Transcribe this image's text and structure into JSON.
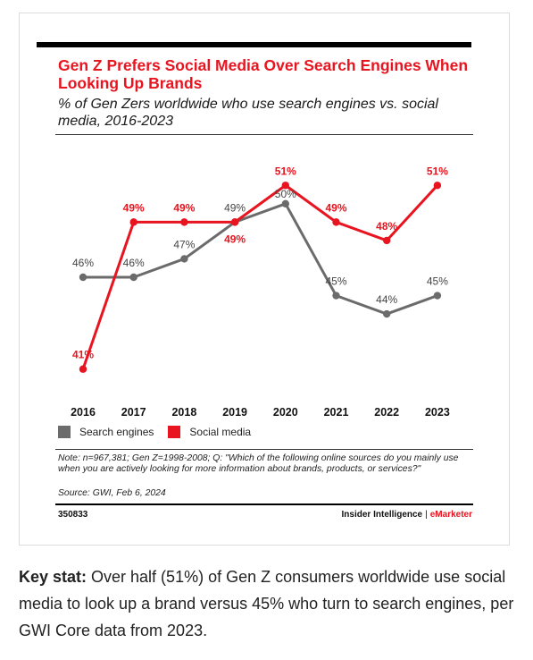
{
  "chart": {
    "title": "Gen Z Prefers Social Media Over Search Engines When Looking Up Brands",
    "subtitle": "% of Gen Zers worldwide who use search engines vs. social media, 2016-2023",
    "note": "Note: n=967,381; Gen Z=1998-2008; Q: \"Which of the following online sources do you mainly use when you are actively looking for more information about brands, products, or services?\"",
    "source": "Source: GWI, Feb 6, 2024",
    "chart_id": "350833",
    "brand_left": "Insider Intelligence",
    "brand_sep": "|",
    "brand_right": "eMarketer"
  },
  "caption": {
    "lead": "Key stat:",
    "text": " Over half (51%) of Gen Z consumers worldwide use social media to look up a brand versus 45% who turn to search engines, per GWI Core data from 2023."
  },
  "chart_data": {
    "type": "line",
    "title": "Gen Z Prefers Social Media Over Search Engines When Looking Up Brands",
    "subtitle": "% of Gen Zers worldwide who use search engines vs. social media, 2016-2023",
    "x": [
      "2016",
      "2017",
      "2018",
      "2019",
      "2020",
      "2021",
      "2022",
      "2023"
    ],
    "series": [
      {
        "name": "Search engines",
        "color": "#6b6b6b",
        "values": [
          46,
          46,
          47,
          49,
          50,
          45,
          44,
          45
        ],
        "labels": [
          "46%",
          "46%",
          "47%",
          "49%",
          "50%",
          "45%",
          "44%",
          "45%"
        ]
      },
      {
        "name": "Social media",
        "color": "#e8141f",
        "values": [
          41,
          49,
          49,
          49,
          51,
          49,
          48,
          51
        ],
        "labels": [
          "41%",
          "49%",
          "49%",
          "49%",
          "51%",
          "49%",
          "48%",
          "51%"
        ]
      }
    ],
    "ylim": [
      40.5,
      51.5
    ],
    "grid": false,
    "legend": "bottom-left"
  }
}
